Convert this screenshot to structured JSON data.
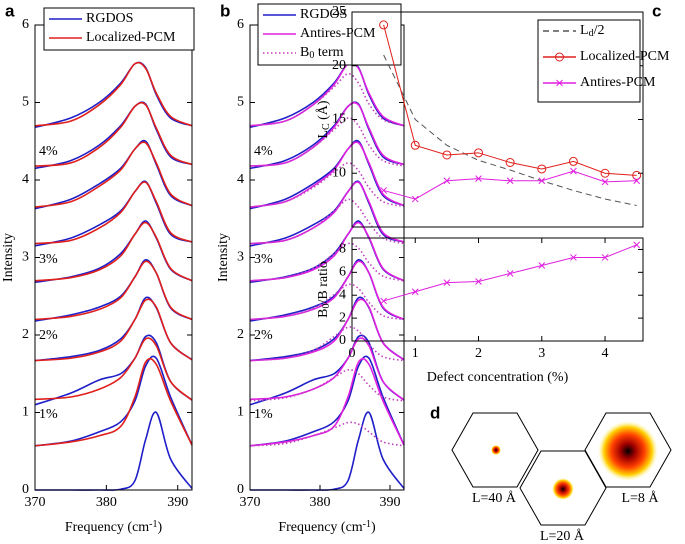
{
  "chart_data": [
    {
      "type": "spectra",
      "label": "a",
      "x": [
        370,
        375,
        379,
        382,
        384,
        385.5,
        387,
        389,
        392
      ],
      "xlim": [
        370,
        392
      ],
      "xticks": [
        370,
        380,
        390
      ],
      "ylim": [
        0,
        6
      ],
      "yticks": [
        0,
        1,
        2,
        3,
        4,
        5,
        6
      ],
      "xlabel": [
        "Frequency (cm",
        "-1",
        ")"
      ],
      "ylabel": "Intensity",
      "annotations": [
        "4%",
        "3%",
        "2%",
        "1%"
      ],
      "series": [
        {
          "name": "RGDOS",
          "color": "#1f1fc8",
          "style": "solid",
          "curves": [
            [
              0,
              0,
              0,
              0.01,
              0.12,
              0.65,
              1.0,
              0.4,
              0.02
            ],
            [
              0.57,
              0.63,
              0.75,
              0.88,
              1.15,
              1.6,
              1.7,
              1.2,
              0.58
            ],
            [
              1.1,
              1.25,
              1.42,
              1.5,
              1.7,
              1.98,
              1.9,
              1.4,
              1.16
            ],
            [
              1.67,
              1.72,
              1.8,
              1.95,
              2.2,
              2.48,
              2.35,
              1.9,
              1.68
            ],
            [
              2.18,
              2.26,
              2.36,
              2.5,
              2.75,
              2.97,
              2.8,
              2.35,
              2.2
            ],
            [
              2.68,
              2.75,
              2.86,
              3.05,
              3.3,
              3.47,
              3.25,
              2.85,
              2.7
            ],
            [
              3.15,
              3.25,
              3.42,
              3.6,
              3.85,
              3.98,
              3.7,
              3.3,
              3.2
            ],
            [
              3.63,
              3.75,
              3.95,
              4.15,
              4.4,
              4.5,
              4.2,
              3.8,
              3.67
            ],
            [
              4.15,
              4.25,
              4.45,
              4.7,
              4.95,
              4.98,
              4.65,
              4.3,
              4.2
            ],
            [
              4.68,
              4.8,
              5.0,
              5.25,
              5.5,
              5.45,
              5.1,
              4.8,
              4.7
            ]
          ]
        },
        {
          "name": "Localized-PCM",
          "color": "#e0201c",
          "style": "solid",
          "curves": [
            [
              0.57,
              0.62,
              0.7,
              0.82,
              1.2,
              1.65,
              1.62,
              1.15,
              0.58
            ],
            [
              1.17,
              1.2,
              1.3,
              1.45,
              1.7,
              1.95,
              1.86,
              1.4,
              1.16
            ],
            [
              1.67,
              1.7,
              1.78,
              1.92,
              2.2,
              2.45,
              2.36,
              1.9,
              1.68
            ],
            [
              2.2,
              2.24,
              2.33,
              2.48,
              2.75,
              2.95,
              2.8,
              2.36,
              2.2
            ],
            [
              2.7,
              2.74,
              2.84,
              3.02,
              3.3,
              3.45,
              3.26,
              2.86,
              2.7
            ],
            [
              3.18,
              3.22,
              3.38,
              3.58,
              3.85,
              3.97,
              3.72,
              3.32,
              3.2
            ],
            [
              3.65,
              3.72,
              3.92,
              4.13,
              4.4,
              4.48,
              4.22,
              3.82,
              3.67
            ],
            [
              4.18,
              4.22,
              4.42,
              4.68,
              4.95,
              4.97,
              4.67,
              4.32,
              4.2
            ],
            [
              4.7,
              4.76,
              4.97,
              5.23,
              5.5,
              5.44,
              5.12,
              4.82,
              4.7
            ]
          ]
        }
      ]
    },
    {
      "type": "spectra",
      "label": "b",
      "x": [
        370,
        375,
        379,
        382,
        384,
        385.5,
        387,
        389,
        392
      ],
      "xlim": [
        370,
        392
      ],
      "xticks": [
        370,
        380,
        390
      ],
      "ylim": [
        0,
        6
      ],
      "yticks": [
        0,
        1,
        2,
        3,
        4,
        5,
        6
      ],
      "xlabel": [
        "Frequency (cm",
        "-1",
        ")"
      ],
      "ylabel": "Intensity",
      "annotations": [
        "4%",
        "3%",
        "2%",
        "1%"
      ],
      "series": [
        {
          "name": "RGDOS",
          "color": "#1f1fc8",
          "style": "solid",
          "curves": [
            [
              0,
              0,
              0,
              0.01,
              0.12,
              0.65,
              1.0,
              0.4,
              0.02
            ],
            [
              0.57,
              0.63,
              0.75,
              0.88,
              1.15,
              1.6,
              1.7,
              1.2,
              0.58
            ],
            [
              1.1,
              1.25,
              1.42,
              1.5,
              1.7,
              1.98,
              1.9,
              1.4,
              1.16
            ],
            [
              1.67,
              1.72,
              1.8,
              1.95,
              2.2,
              2.48,
              2.35,
              1.9,
              1.68
            ],
            [
              2.18,
              2.26,
              2.36,
              2.5,
              2.75,
              2.97,
              2.8,
              2.35,
              2.2
            ],
            [
              2.68,
              2.75,
              2.86,
              3.05,
              3.3,
              3.47,
              3.25,
              2.85,
              2.7
            ],
            [
              3.15,
              3.25,
              3.42,
              3.6,
              3.85,
              3.98,
              3.7,
              3.3,
              3.2
            ],
            [
              3.63,
              3.75,
              3.95,
              4.15,
              4.4,
              4.5,
              4.2,
              3.8,
              3.67
            ],
            [
              4.15,
              4.25,
              4.45,
              4.7,
              4.95,
              4.98,
              4.65,
              4.3,
              4.2
            ],
            [
              4.68,
              4.8,
              5.0,
              5.25,
              5.5,
              5.45,
              5.1,
              4.8,
              4.7
            ]
          ]
        },
        {
          "name": "Antires-PCM",
          "color": "#e020e0",
          "style": "solid",
          "curves": [
            [
              0.57,
              0.62,
              0.7,
              0.82,
              1.2,
              1.65,
              1.62,
              1.15,
              0.58
            ],
            [
              1.17,
              1.2,
              1.3,
              1.45,
              1.7,
              1.95,
              1.86,
              1.4,
              1.16
            ],
            [
              1.67,
              1.7,
              1.78,
              1.92,
              2.2,
              2.45,
              2.36,
              1.9,
              1.68
            ],
            [
              2.2,
              2.24,
              2.33,
              2.48,
              2.75,
              2.95,
              2.8,
              2.36,
              2.2
            ],
            [
              2.7,
              2.74,
              2.84,
              3.02,
              3.3,
              3.45,
              3.26,
              2.86,
              2.7
            ],
            [
              3.18,
              3.22,
              3.38,
              3.58,
              3.85,
              3.97,
              3.72,
              3.32,
              3.2
            ],
            [
              3.65,
              3.72,
              3.92,
              4.13,
              4.4,
              4.48,
              4.22,
              3.82,
              3.67
            ],
            [
              4.18,
              4.22,
              4.42,
              4.68,
              4.95,
              4.97,
              4.67,
              4.32,
              4.2
            ],
            [
              4.7,
              4.76,
              4.97,
              5.23,
              5.5,
              5.44,
              5.12,
              4.82,
              4.7
            ]
          ]
        },
        {
          "name": [
            "B",
            "0",
            " term"
          ],
          "color": "#c040c0",
          "style": "dotted",
          "curves": [
            [
              0.57,
              0.6,
              0.7,
              0.8,
              0.87,
              0.85,
              0.75,
              0.62,
              0.57
            ],
            [
              1.15,
              1.19,
              1.3,
              1.45,
              1.55,
              1.5,
              1.35,
              1.2,
              1.15
            ],
            [
              1.67,
              1.7,
              1.8,
              1.98,
              2.1,
              2.05,
              1.88,
              1.72,
              1.67
            ],
            [
              2.2,
              2.24,
              2.34,
              2.52,
              2.65,
              2.6,
              2.42,
              2.25,
              2.2
            ],
            [
              2.7,
              2.74,
              2.86,
              3.05,
              3.18,
              3.12,
              2.93,
              2.76,
              2.7
            ],
            [
              3.18,
              3.22,
              3.38,
              3.6,
              3.75,
              3.65,
              3.45,
              3.25,
              3.18
            ],
            [
              3.65,
              3.72,
              3.9,
              4.1,
              4.22,
              4.12,
              3.9,
              3.72,
              3.66
            ],
            [
              4.18,
              4.22,
              4.42,
              4.65,
              4.8,
              4.7,
              4.45,
              4.25,
              4.18
            ],
            [
              4.7,
              4.76,
              4.97,
              5.2,
              5.37,
              5.25,
              4.98,
              4.78,
              4.7
            ]
          ]
        }
      ]
    },
    {
      "type": "line",
      "label": "c",
      "x": [
        0.5,
        1,
        1.5,
        2,
        2.5,
        3,
        3.5,
        4,
        4.5
      ],
      "xlim": [
        0,
        4.6
      ],
      "ylim": [
        5,
        25
      ],
      "yticks": [
        10,
        15,
        20,
        25
      ],
      "ylabel": [
        "L",
        "C",
        " (Å)"
      ],
      "series": [
        {
          "name": [
            "L",
            "d",
            "/2"
          ],
          "color": "#555555",
          "style": "dashed",
          "marker": "none",
          "values": [
            21,
            15,
            12.6,
            11.2,
            10.3,
            9.3,
            8.4,
            7.6,
            7.0
          ]
        },
        {
          "name": "Localized-PCM",
          "color": "#e0201c",
          "style": "solid",
          "marker": "o",
          "values": [
            23.8,
            12.6,
            11.7,
            11.9,
            11.0,
            10.4,
            11.1,
            10.0,
            9.8
          ]
        },
        {
          "name": "Antires-PCM",
          "color": "#e020e0",
          "style": "solid",
          "marker": "x",
          "values": [
            8.4,
            7.6,
            9.3,
            9.5,
            9.3,
            9.3,
            10.2,
            9.2,
            9.3
          ]
        }
      ]
    },
    {
      "type": "line",
      "x": [
        0.5,
        1,
        1.5,
        2,
        2.5,
        3,
        3.5,
        4,
        4.5
      ],
      "xlim": [
        0,
        4.6
      ],
      "xticks": [
        0,
        1,
        2,
        3,
        4
      ],
      "ylim": [
        0,
        9
      ],
      "yticks": [
        0,
        2,
        4,
        6,
        8
      ],
      "ylabel": [
        "B",
        "0",
        "/B ratio"
      ],
      "xlabel": "Defect concentration (%)",
      "series": [
        {
          "color": "#e020e0",
          "style": "solid",
          "marker": "x",
          "values": [
            3.5,
            4.3,
            5.1,
            5.2,
            5.9,
            6.6,
            7.3,
            7.3,
            8.4
          ]
        }
      ]
    }
  ],
  "diagram": {
    "label": "d",
    "hexagons": [
      {
        "label": "L=40 Å"
      },
      {
        "label": "L=20 Å"
      },
      {
        "label": "L=8 Å"
      }
    ]
  }
}
